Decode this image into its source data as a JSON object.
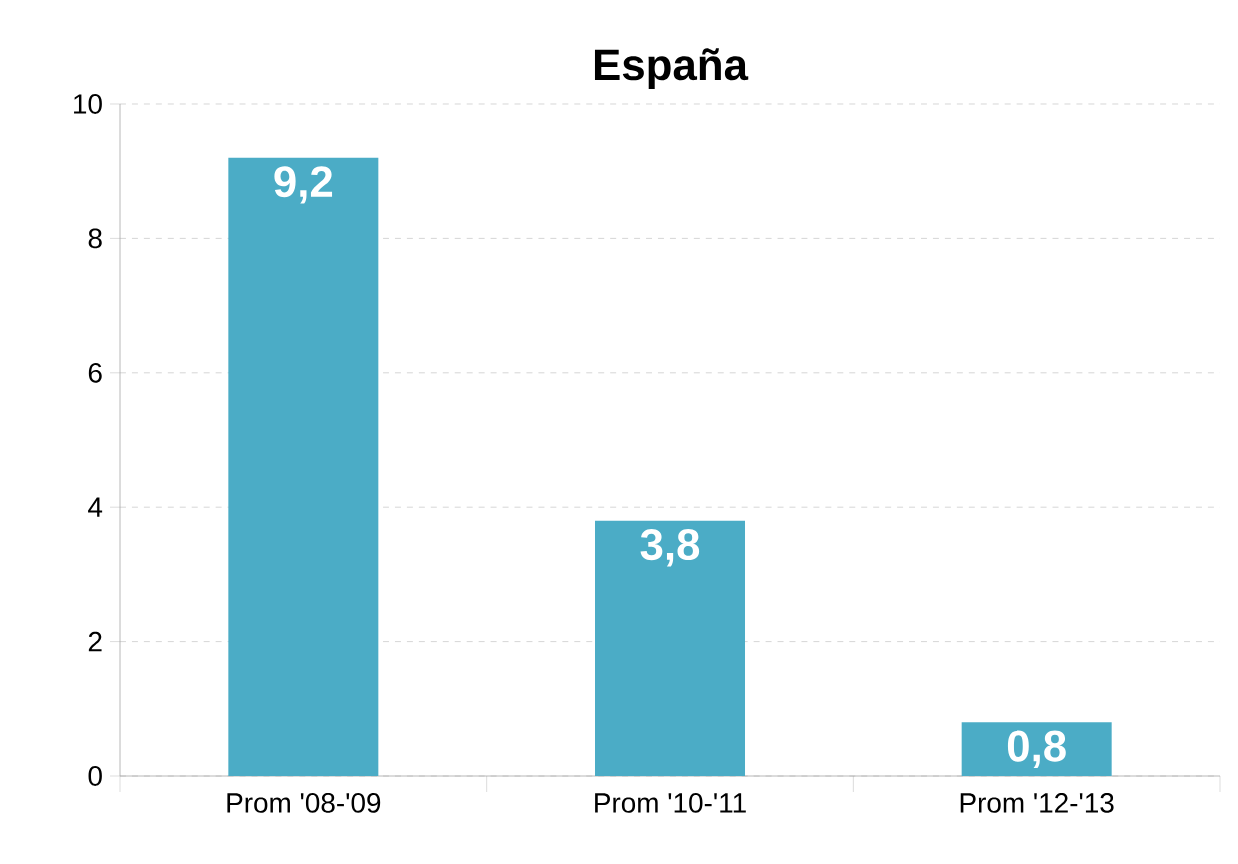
{
  "chart_data": {
    "type": "bar",
    "title": "España",
    "categories": [
      "Prom '08-'09",
      "Prom '10-'11",
      "Prom '12-'13"
    ],
    "values": [
      9.2,
      3.8,
      0.8
    ],
    "value_labels": [
      "9,2",
      "3,8",
      "0,8"
    ],
    "color": "#4bacc6",
    "ylim": [
      0,
      10
    ],
    "yticks": [
      0,
      2,
      4,
      6,
      8,
      10
    ],
    "grid": "y"
  }
}
